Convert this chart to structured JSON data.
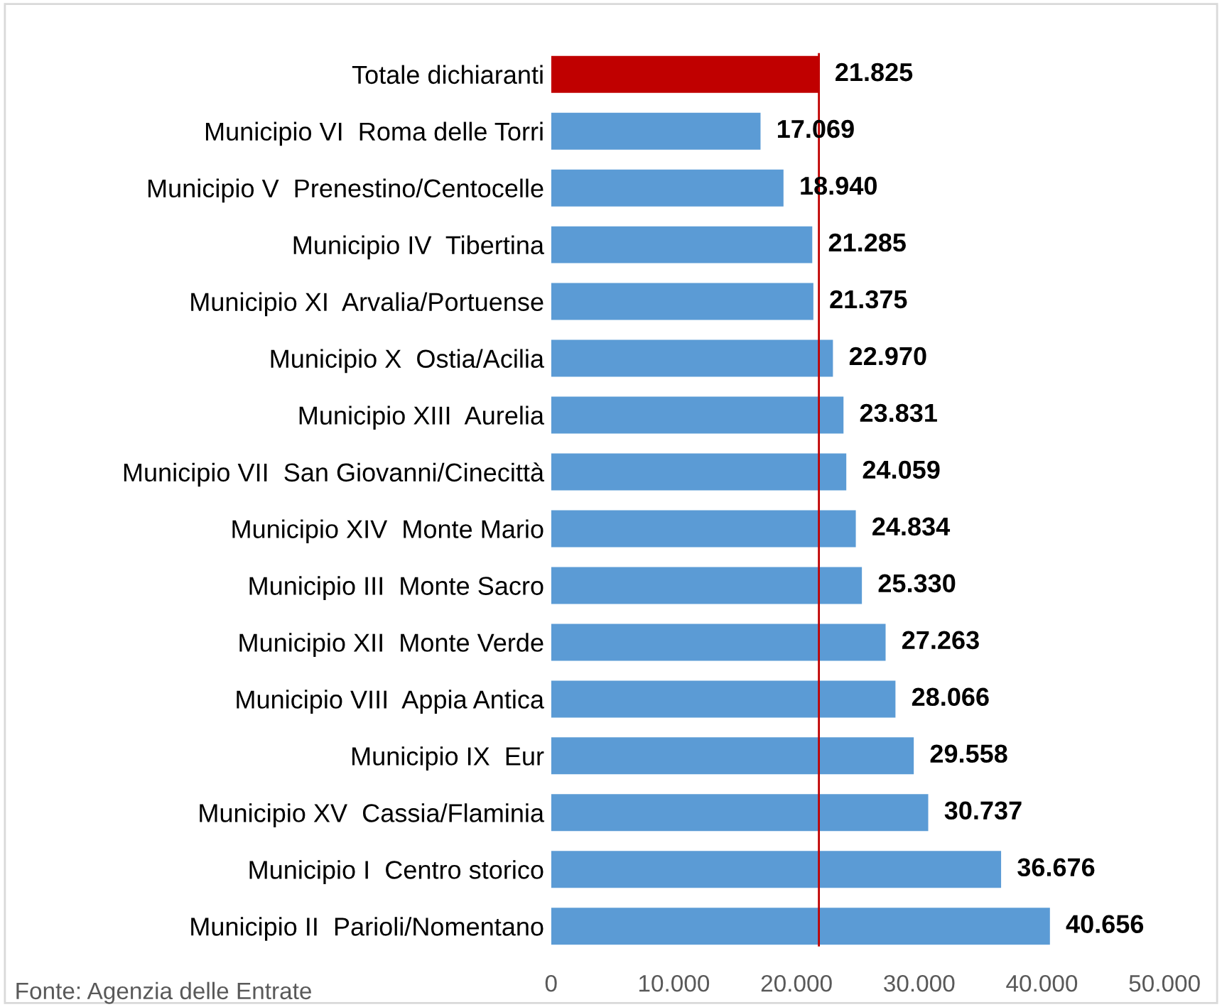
{
  "chart_data": {
    "type": "bar",
    "orientation": "horizontal",
    "categories": [
      "Totale dichiaranti",
      "Municipio VI  Roma delle Torri",
      "Municipio V  Prenestino/Centocelle",
      "Municipio IV  Tibertina",
      "Municipio XI  Arvalia/Portuense",
      "Municipio X  Ostia/Acilia",
      "Municipio XIII  Aurelia",
      "Municipio VII  San Giovanni/Cinecittà",
      "Municipio XIV  Monte Mario",
      "Municipio III  Monte Sacro",
      "Municipio XII  Monte Verde",
      "Municipio VIII  Appia Antica",
      "Municipio IX  Eur",
      "Municipio XV  Cassia/Flaminia",
      "Municipio I  Centro storico",
      "Municipio II  Parioli/Nomentano"
    ],
    "values": [
      21825,
      17069,
      18940,
      21285,
      21375,
      22970,
      23831,
      24059,
      24834,
      25330,
      27263,
      28066,
      29558,
      30737,
      36676,
      40656
    ],
    "value_labels": [
      "21.825",
      "17.069",
      "18.940",
      "21.285",
      "21.375",
      "22.970",
      "23.831",
      "24.059",
      "24.834",
      "25.330",
      "27.263",
      "28.066",
      "29.558",
      "30.737",
      "36.676",
      "40.656"
    ],
    "colors": [
      "#c00000",
      "#5b9bd5",
      "#5b9bd5",
      "#5b9bd5",
      "#5b9bd5",
      "#5b9bd5",
      "#5b9bd5",
      "#5b9bd5",
      "#5b9bd5",
      "#5b9bd5",
      "#5b9bd5",
      "#5b9bd5",
      "#5b9bd5",
      "#5b9bd5",
      "#5b9bd5",
      "#5b9bd5"
    ],
    "xlim": [
      0,
      50000
    ],
    "xticks": [
      0,
      {
        "value": 10000,
        "label": "10.000"
      },
      {
        "value": 20000,
        "label": "20.000"
      },
      {
        "value": 30000,
        "label": "30.000"
      },
      {
        "value": 40000,
        "label": "40.000"
      },
      {
        "value": 50000,
        "label": "50.000"
      }
    ],
    "ref_lines": [
      {
        "axis": "x",
        "value": 21825,
        "color": "#c00000"
      }
    ],
    "grid": false,
    "legend": false,
    "annotations": [
      "Fonte: Agenzia delle Entrate"
    ]
  }
}
